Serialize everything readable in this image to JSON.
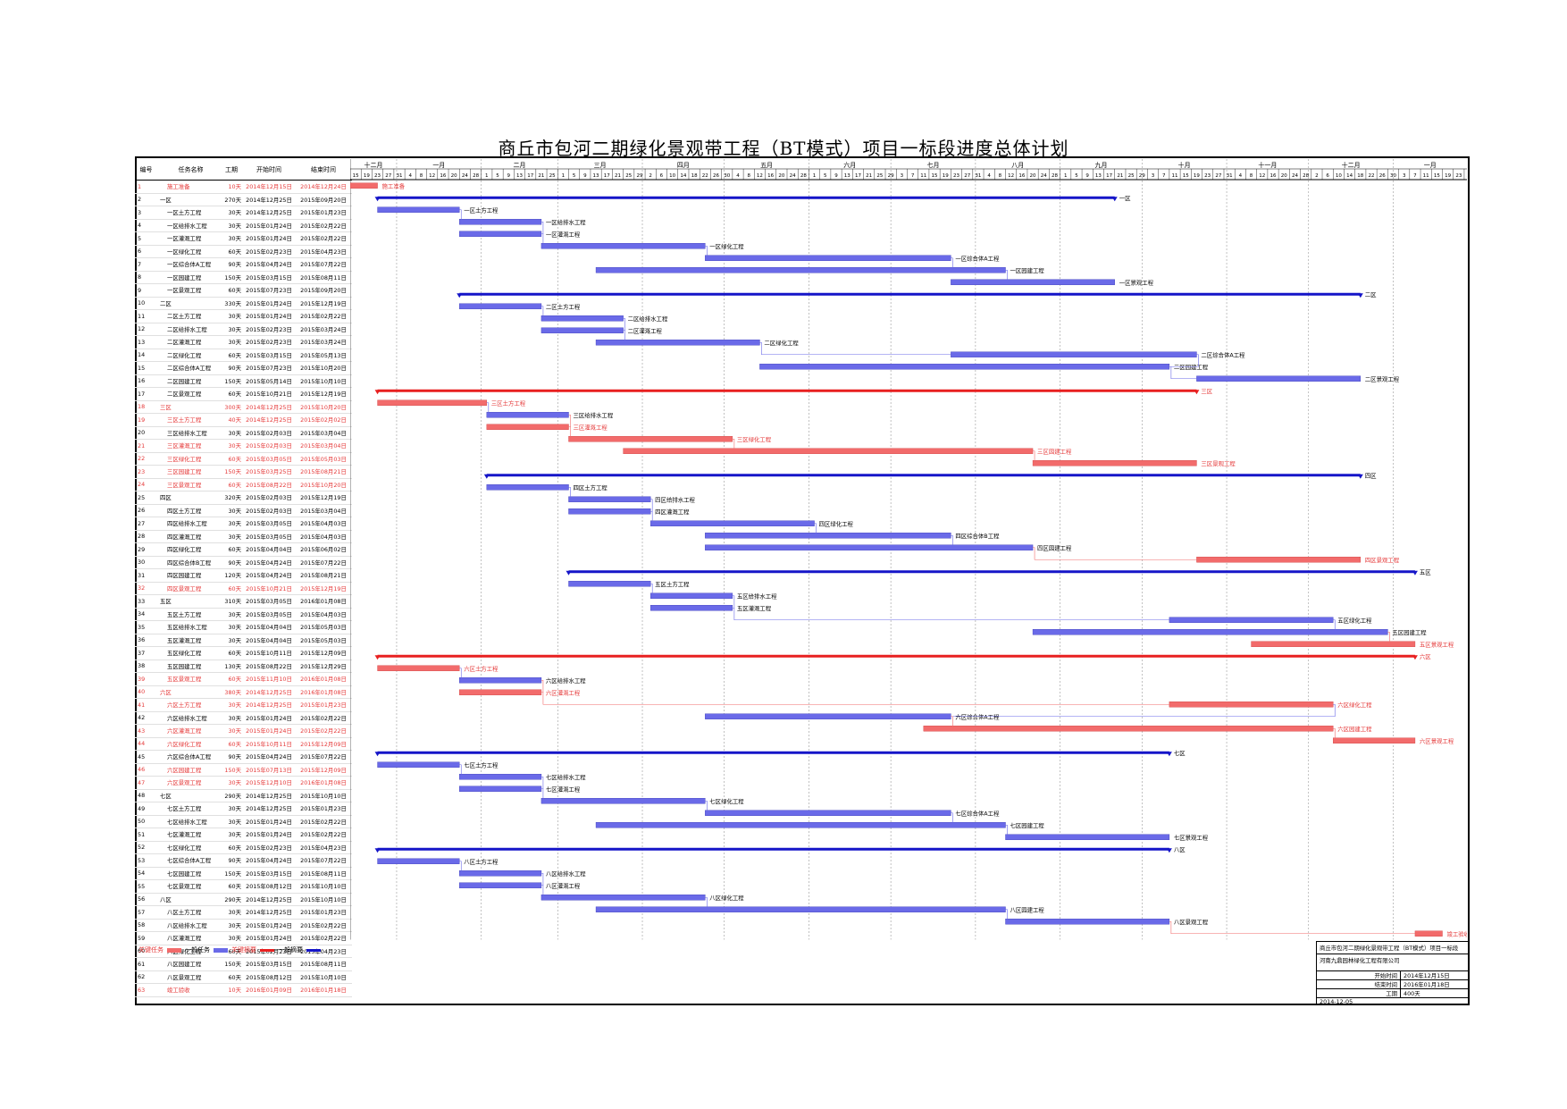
{
  "title": "商丘市包河二期绿化景观带工程（BT模式）项目一标段进度总体计划",
  "columns": [
    "编号",
    "任务名称",
    "工期",
    "开始时间",
    "结束时间"
  ],
  "timeline": {
    "start": "2014-12-15",
    "end": "2016-01-27",
    "months": [
      {
        "label": "十二月",
        "start": "2014-12-15"
      },
      {
        "label": "一月",
        "start": "2015-01-01"
      },
      {
        "label": "二月",
        "start": "2015-02-01"
      },
      {
        "label": "三月",
        "start": "2015-03-01"
      },
      {
        "label": "四月",
        "start": "2015-04-01"
      },
      {
        "label": "五月",
        "start": "2015-05-01"
      },
      {
        "label": "六月",
        "start": "2015-06-01"
      },
      {
        "label": "七月",
        "start": "2015-07-01"
      },
      {
        "label": "八月",
        "start": "2015-08-01"
      },
      {
        "label": "九月",
        "start": "2015-09-01"
      },
      {
        "label": "十月",
        "start": "2015-10-01"
      },
      {
        "label": "十一月",
        "start": "2015-11-01"
      },
      {
        "label": "十二月",
        "start": "2015-12-01"
      },
      {
        "label": "一月",
        "start": "2016-01-01"
      }
    ]
  },
  "tasks": [
    {
      "id": "1",
      "name": "施工准备",
      "dur": "10天",
      "start": "2014年12月15日",
      "end": "2014年12月24日",
      "critical": true,
      "summary": false,
      "bar_label": "施工准备"
    },
    {
      "id": "2",
      "name": "一区",
      "dur": "270天",
      "start": "2014年12月25日",
      "end": "2015年09月20日",
      "critical": false,
      "summary": true,
      "bar_label": "一区"
    },
    {
      "id": "3",
      "name": "一区土方工程",
      "dur": "30天",
      "start": "2014年12月25日",
      "end": "2015年01月23日",
      "critical": false,
      "summary": false,
      "bar_label": "一区土方工程"
    },
    {
      "id": "4",
      "name": "一区给排水工程",
      "dur": "30天",
      "start": "2015年01月24日",
      "end": "2015年02月22日",
      "critical": false,
      "summary": false,
      "bar_label": "一区给排水工程"
    },
    {
      "id": "5",
      "name": "一区灌溉工程",
      "dur": "30天",
      "start": "2015年01月24日",
      "end": "2015年02月22日",
      "critical": false,
      "summary": false,
      "bar_label": "一区灌溉工程"
    },
    {
      "id": "6",
      "name": "一区绿化工程",
      "dur": "60天",
      "start": "2015年02月23日",
      "end": "2015年04月23日",
      "critical": false,
      "summary": false,
      "bar_label": "一区绿化工程"
    },
    {
      "id": "7",
      "name": "一区综合体A工程",
      "dur": "90天",
      "start": "2015年04月24日",
      "end": "2015年07月22日",
      "critical": false,
      "summary": false,
      "bar_label": "一区综合体A工程"
    },
    {
      "id": "8",
      "name": "一区园建工程",
      "dur": "150天",
      "start": "2015年03月15日",
      "end": "2015年08月11日",
      "critical": false,
      "summary": false,
      "bar_label": "一区园建工程"
    },
    {
      "id": "9",
      "name": "一区景观工程",
      "dur": "60天",
      "start": "2015年07月23日",
      "end": "2015年09月20日",
      "critical": false,
      "summary": false,
      "bar_label": "一区景观工程"
    },
    {
      "id": "10",
      "name": "二区",
      "dur": "330天",
      "start": "2015年01月24日",
      "end": "2015年12月19日",
      "critical": false,
      "summary": true,
      "bar_label": "二区"
    },
    {
      "id": "11",
      "name": "二区土方工程",
      "dur": "30天",
      "start": "2015年01月24日",
      "end": "2015年02月22日",
      "critical": false,
      "summary": false,
      "bar_label": "二区土方工程"
    },
    {
      "id": "12",
      "name": "二区给排水工程",
      "dur": "30天",
      "start": "2015年02月23日",
      "end": "2015年03月24日",
      "critical": false,
      "summary": false,
      "bar_label": "二区给排水工程"
    },
    {
      "id": "13",
      "name": "二区灌溉工程",
      "dur": "30天",
      "start": "2015年02月23日",
      "end": "2015年03月24日",
      "critical": false,
      "summary": false,
      "bar_label": "二区灌溉工程"
    },
    {
      "id": "14",
      "name": "二区绿化工程",
      "dur": "60天",
      "start": "2015年03月15日",
      "end": "2015年05月13日",
      "critical": false,
      "summary": false,
      "bar_label": "二区绿化工程"
    },
    {
      "id": "15",
      "name": "二区综合体A工程",
      "dur": "90天",
      "start": "2015年07月23日",
      "end": "2015年10月20日",
      "critical": false,
      "summary": false,
      "bar_label": "二区综合体A工程"
    },
    {
      "id": "16",
      "name": "二区园建工程",
      "dur": "150天",
      "start": "2015年05月14日",
      "end": "2015年10月10日",
      "critical": false,
      "summary": false,
      "bar_label": "二区园建工程"
    },
    {
      "id": "17",
      "name": "二区景观工程",
      "dur": "60天",
      "start": "2015年10月21日",
      "end": "2015年12月19日",
      "critical": false,
      "summary": false,
      "bar_label": "二区景观工程"
    },
    {
      "id": "18",
      "name": "三区",
      "dur": "300天",
      "start": "2014年12月25日",
      "end": "2015年10月20日",
      "critical": true,
      "summary": true,
      "bar_label": "三区"
    },
    {
      "id": "19",
      "name": "三区土方工程",
      "dur": "40天",
      "start": "2014年12月25日",
      "end": "2015年02月02日",
      "critical": true,
      "summary": false,
      "bar_label": "三区土方工程"
    },
    {
      "id": "20",
      "name": "三区给排水工程",
      "dur": "30天",
      "start": "2015年02月03日",
      "end": "2015年03月04日",
      "critical": false,
      "summary": false,
      "bar_label": "三区给排水工程"
    },
    {
      "id": "21",
      "name": "三区灌溉工程",
      "dur": "30天",
      "start": "2015年02月03日",
      "end": "2015年03月04日",
      "critical": true,
      "summary": false,
      "bar_label": "三区灌溉工程"
    },
    {
      "id": "22",
      "name": "三区绿化工程",
      "dur": "60天",
      "start": "2015年03月05日",
      "end": "2015年05月03日",
      "critical": true,
      "summary": false,
      "bar_label": "三区绿化工程"
    },
    {
      "id": "23",
      "name": "三区园建工程",
      "dur": "150天",
      "start": "2015年03月25日",
      "end": "2015年08月21日",
      "critical": true,
      "summary": false,
      "bar_label": "三区园建工程"
    },
    {
      "id": "24",
      "name": "三区景观工程",
      "dur": "60天",
      "start": "2015年08月22日",
      "end": "2015年10月20日",
      "critical": true,
      "summary": false,
      "bar_label": "三区景观工程"
    },
    {
      "id": "25",
      "name": "四区",
      "dur": "320天",
      "start": "2015年02月03日",
      "end": "2015年12月19日",
      "critical": false,
      "summary": true,
      "bar_label": "四区"
    },
    {
      "id": "26",
      "name": "四区土方工程",
      "dur": "30天",
      "start": "2015年02月03日",
      "end": "2015年03月04日",
      "critical": false,
      "summary": false,
      "bar_label": "四区土方工程"
    },
    {
      "id": "27",
      "name": "四区给排水工程",
      "dur": "30天",
      "start": "2015年03月05日",
      "end": "2015年04月03日",
      "critical": false,
      "summary": false,
      "bar_label": "四区给排水工程"
    },
    {
      "id": "28",
      "name": "四区灌溉工程",
      "dur": "30天",
      "start": "2015年03月05日",
      "end": "2015年04月03日",
      "critical": false,
      "summary": false,
      "bar_label": "四区灌溉工程"
    },
    {
      "id": "29",
      "name": "四区绿化工程",
      "dur": "60天",
      "start": "2015年04月04日",
      "end": "2015年06月02日",
      "critical": false,
      "summary": false,
      "bar_label": "四区绿化工程"
    },
    {
      "id": "30",
      "name": "四区综合体B工程",
      "dur": "90天",
      "start": "2015年04月24日",
      "end": "2015年07月22日",
      "critical": false,
      "summary": false,
      "bar_label": "四区综合体B工程"
    },
    {
      "id": "31",
      "name": "四区园建工程",
      "dur": "120天",
      "start": "2015年04月24日",
      "end": "2015年08月21日",
      "critical": false,
      "summary": false,
      "bar_label": "四区园建工程"
    },
    {
      "id": "32",
      "name": "四区景观工程",
      "dur": "60天",
      "start": "2015年10月21日",
      "end": "2015年12月19日",
      "critical": true,
      "summary": false,
      "bar_label": "四区景观工程"
    },
    {
      "id": "33",
      "name": "五区",
      "dur": "310天",
      "start": "2015年03月05日",
      "end": "2016年01月08日",
      "critical": false,
      "summary": true,
      "bar_label": "五区"
    },
    {
      "id": "34",
      "name": "五区土方工程",
      "dur": "30天",
      "start": "2015年03月05日",
      "end": "2015年04月03日",
      "critical": false,
      "summary": false,
      "bar_label": "五区土方工程"
    },
    {
      "id": "35",
      "name": "五区给排水工程",
      "dur": "30天",
      "start": "2015年04月04日",
      "end": "2015年05月03日",
      "critical": false,
      "summary": false,
      "bar_label": "五区给排水工程"
    },
    {
      "id": "36",
      "name": "五区灌溉工程",
      "dur": "30天",
      "start": "2015年04月04日",
      "end": "2015年05月03日",
      "critical": false,
      "summary": false,
      "bar_label": "五区灌溉工程"
    },
    {
      "id": "37",
      "name": "五区绿化工程",
      "dur": "60天",
      "start": "2015年10月11日",
      "end": "2015年12月09日",
      "critical": false,
      "summary": false,
      "bar_label": "五区绿化工程"
    },
    {
      "id": "38",
      "name": "五区园建工程",
      "dur": "130天",
      "start": "2015年08月22日",
      "end": "2015年12月29日",
      "critical": false,
      "summary": false,
      "bar_label": "五区园建工程"
    },
    {
      "id": "39",
      "name": "五区景观工程",
      "dur": "60天",
      "start": "2015年11月10日",
      "end": "2016年01月08日",
      "critical": true,
      "summary": false,
      "bar_label": "五区景观工程"
    },
    {
      "id": "40",
      "name": "六区",
      "dur": "380天",
      "start": "2014年12月25日",
      "end": "2016年01月08日",
      "critical": true,
      "summary": true,
      "bar_label": "六区"
    },
    {
      "id": "41",
      "name": "六区土方工程",
      "dur": "30天",
      "start": "2014年12月25日",
      "end": "2015年01月23日",
      "critical": true,
      "summary": false,
      "bar_label": "六区土方工程"
    },
    {
      "id": "42",
      "name": "六区给排水工程",
      "dur": "30天",
      "start": "2015年01月24日",
      "end": "2015年02月22日",
      "critical": false,
      "summary": false,
      "bar_label": "六区给排水工程"
    },
    {
      "id": "43",
      "name": "六区灌溉工程",
      "dur": "30天",
      "start": "2015年01月24日",
      "end": "2015年02月22日",
      "critical": true,
      "summary": false,
      "bar_label": "六区灌溉工程"
    },
    {
      "id": "44",
      "name": "六区绿化工程",
      "dur": "60天",
      "start": "2015年10月11日",
      "end": "2015年12月09日",
      "critical": true,
      "summary": false,
      "bar_label": "六区绿化工程"
    },
    {
      "id": "45",
      "name": "六区综合体A工程",
      "dur": "90天",
      "start": "2015年04月24日",
      "end": "2015年07月22日",
      "critical": false,
      "summary": false,
      "bar_label": "六区综合体A工程"
    },
    {
      "id": "46",
      "name": "六区园建工程",
      "dur": "150天",
      "start": "2015年07月13日",
      "end": "2015年12月09日",
      "critical": true,
      "summary": false,
      "bar_label": "六区园建工程"
    },
    {
      "id": "47",
      "name": "六区景观工程",
      "dur": "30天",
      "start": "2015年12月10日",
      "end": "2016年01月08日",
      "critical": true,
      "summary": false,
      "bar_label": "六区景观工程"
    },
    {
      "id": "48",
      "name": "七区",
      "dur": "290天",
      "start": "2014年12月25日",
      "end": "2015年10月10日",
      "critical": false,
      "summary": true,
      "bar_label": "七区"
    },
    {
      "id": "49",
      "name": "七区土方工程",
      "dur": "30天",
      "start": "2014年12月25日",
      "end": "2015年01月23日",
      "critical": false,
      "summary": false,
      "bar_label": "七区土方工程"
    },
    {
      "id": "50",
      "name": "七区给排水工程",
      "dur": "30天",
      "start": "2015年01月24日",
      "end": "2015年02月22日",
      "critical": false,
      "summary": false,
      "bar_label": "七区给排水工程"
    },
    {
      "id": "51",
      "name": "七区灌溉工程",
      "dur": "30天",
      "start": "2015年01月24日",
      "end": "2015年02月22日",
      "critical": false,
      "summary": false,
      "bar_label": "七区灌溉工程"
    },
    {
      "id": "52",
      "name": "七区绿化工程",
      "dur": "60天",
      "start": "2015年02月23日",
      "end": "2015年04月23日",
      "critical": false,
      "summary": false,
      "bar_label": "七区绿化工程"
    },
    {
      "id": "53",
      "name": "七区综合体A工程",
      "dur": "90天",
      "start": "2015年04月24日",
      "end": "2015年07月22日",
      "critical": false,
      "summary": false,
      "bar_label": "七区综合体A工程"
    },
    {
      "id": "54",
      "name": "七区园建工程",
      "dur": "150天",
      "start": "2015年03月15日",
      "end": "2015年08月11日",
      "critical": false,
      "summary": false,
      "bar_label": "七区园建工程"
    },
    {
      "id": "55",
      "name": "七区景观工程",
      "dur": "60天",
      "start": "2015年08月12日",
      "end": "2015年10月10日",
      "critical": false,
      "summary": false,
      "bar_label": "七区景观工程"
    },
    {
      "id": "56",
      "name": "八区",
      "dur": "290天",
      "start": "2014年12月25日",
      "end": "2015年10月10日",
      "critical": false,
      "summary": true,
      "bar_label": "八区"
    },
    {
      "id": "57",
      "name": "八区土方工程",
      "dur": "30天",
      "start": "2014年12月25日",
      "end": "2015年01月23日",
      "critical": false,
      "summary": false,
      "bar_label": "八区土方工程"
    },
    {
      "id": "58",
      "name": "八区给排水工程",
      "dur": "30天",
      "start": "2015年01月24日",
      "end": "2015年02月22日",
      "critical": false,
      "summary": false,
      "bar_label": "八区给排水工程"
    },
    {
      "id": "59",
      "name": "八区灌溉工程",
      "dur": "30天",
      "start": "2015年01月24日",
      "end": "2015年02月22日",
      "critical": false,
      "summary": false,
      "bar_label": "八区灌溉工程"
    },
    {
      "id": "60",
      "name": "八区绿化工程",
      "dur": "60天",
      "start": "2015年02月23日",
      "end": "2015年04月23日",
      "critical": false,
      "summary": false,
      "bar_label": "八区绿化工程"
    },
    {
      "id": "61",
      "name": "八区园建工程",
      "dur": "150天",
      "start": "2015年03月15日",
      "end": "2015年08月11日",
      "critical": false,
      "summary": false,
      "bar_label": "八区园建工程"
    },
    {
      "id": "62",
      "name": "八区景观工程",
      "dur": "60天",
      "start": "2015年08月12日",
      "end": "2015年10月10日",
      "critical": false,
      "summary": false,
      "bar_label": "八区景观工程"
    },
    {
      "id": "63",
      "name": "竣工验收",
      "dur": "10天",
      "start": "2016年01月09日",
      "end": "2016年01月18日",
      "critical": true,
      "summary": false,
      "bar_label": "竣工验收"
    }
  ],
  "legend": {
    "critical_task": "关键任务",
    "normal_task": "一般任务",
    "critical_summary": "关键摘要",
    "normal_summary": "一般摘要"
  },
  "colors": {
    "critical": "#f26b6b",
    "normal": "#6a6ae8",
    "critical_summary": "#e82020",
    "normal_summary": "#1515c8",
    "critical_text": "#e53838"
  },
  "infobox": {
    "project": "商丘市包河二期绿化景观带工程（BT模式）项目一标段",
    "company": "河南九鼎园林绿化工程有限公司",
    "start_label": "开始时间",
    "start_value": "2014年12月15日",
    "end_label": "结束时间",
    "end_value": "2016年01月18日",
    "dur_label": "工期",
    "dur_value": "400天",
    "date": "2014-12-05"
  }
}
